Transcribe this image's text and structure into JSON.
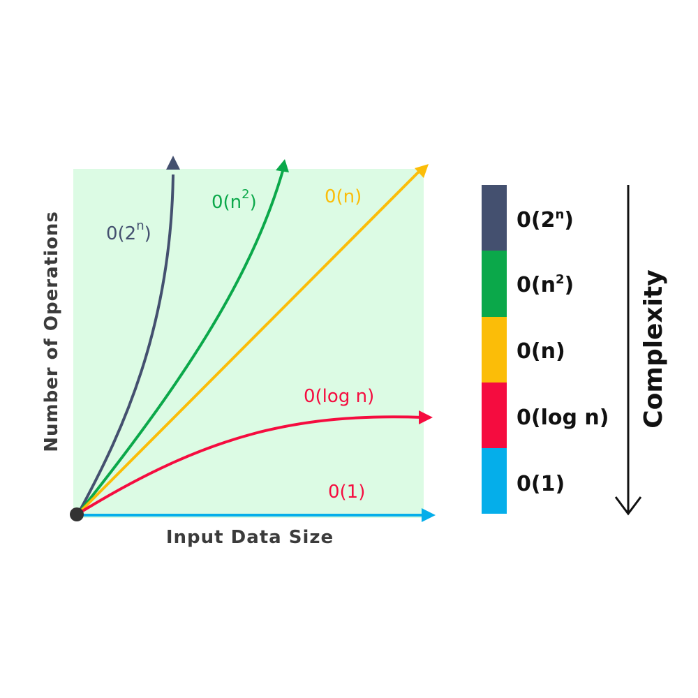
{
  "plot": {
    "x_axis_label": "Input Data Size",
    "y_axis_label": "Number of Operations",
    "background_color": "#dcfbe4",
    "origin_color": "#333333"
  },
  "curves": [
    {
      "id": "exp",
      "label_base": "0(2",
      "label_sup": "n",
      "label_close": ")",
      "color": "#44506f"
    },
    {
      "id": "quad",
      "label_base": "0(n",
      "label_sup": "2",
      "label_close": ")",
      "color": "#0ba84a"
    },
    {
      "id": "linear",
      "label": "0(n)",
      "color": "#fbbd08"
    },
    {
      "id": "log",
      "label": "0(log n)",
      "color": "#f50c3f"
    },
    {
      "id": "const",
      "label": "0(1)",
      "color": "#05aeea"
    }
  ],
  "legend": {
    "title": "Complexity",
    "items": [
      {
        "label_base": "0(2",
        "label_sup": "n",
        "label_close": ")",
        "color": "#44506f"
      },
      {
        "label_base": "0(n",
        "label_sup": "2",
        "label_close": ")",
        "color": "#0ba84a"
      },
      {
        "label": "0(n)",
        "color": "#fbbd08"
      },
      {
        "label": "0(log n)",
        "color": "#f50c3f"
      },
      {
        "label": "0(1)",
        "color": "#05aeea"
      }
    ]
  }
}
